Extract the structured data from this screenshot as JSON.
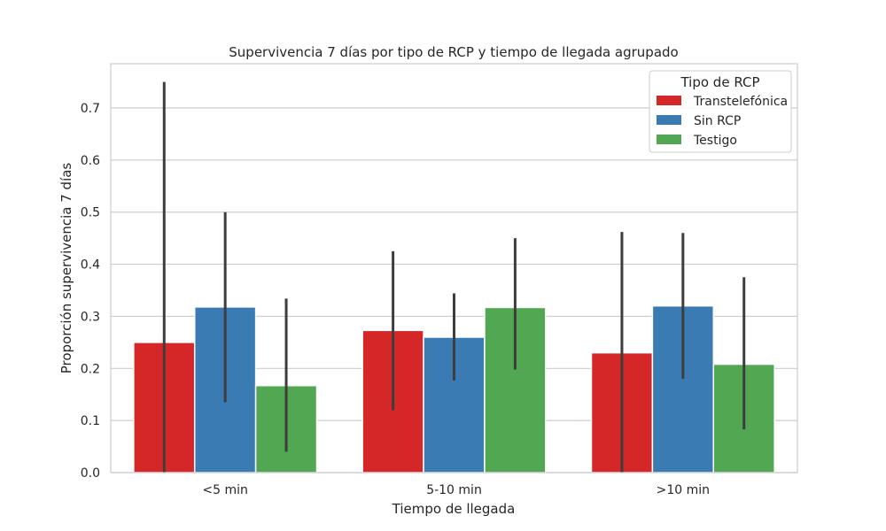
{
  "chart_data": {
    "type": "bar",
    "title": "Supervivencia 7 días por tipo de RCP y tiempo de llegada agrupado",
    "xlabel": "Tiempo de llegada",
    "ylabel": "Proporción supervivencia 7 días",
    "categories": [
      "<5 min",
      "5-10 min",
      ">10 min"
    ],
    "ylim": [
      0,
      0.785
    ],
    "yticks": [
      0.0,
      0.1,
      0.2,
      0.3,
      0.4,
      0.5,
      0.6,
      0.7
    ],
    "ytick_labels": [
      "0.0",
      "0.1",
      "0.2",
      "0.3",
      "0.4",
      "0.5",
      "0.6",
      "0.7"
    ],
    "grid": true,
    "legend": {
      "title": "Tipo de RCP",
      "placement": "top-right"
    },
    "series": [
      {
        "name": "Transtelefónica",
        "color": "#d62728",
        "values": [
          0.25,
          0.273,
          0.23
        ],
        "ci": [
          [
            0.0,
            0.75
          ],
          [
            0.12,
            0.425
          ],
          [
            0.0,
            0.462
          ]
        ]
      },
      {
        "name": "Sin RCP",
        "color": "#3b7bb3",
        "values": [
          0.318,
          0.26,
          0.32
        ],
        "ci": [
          [
            0.135,
            0.5
          ],
          [
            0.177,
            0.344
          ],
          [
            0.18,
            0.46
          ]
        ]
      },
      {
        "name": "Testigo",
        "color": "#52a852",
        "values": [
          0.167,
          0.317,
          0.208
        ],
        "ci": [
          [
            0.04,
            0.334
          ],
          [
            0.198,
            0.45
          ],
          [
            0.083,
            0.375
          ]
        ]
      }
    ]
  }
}
